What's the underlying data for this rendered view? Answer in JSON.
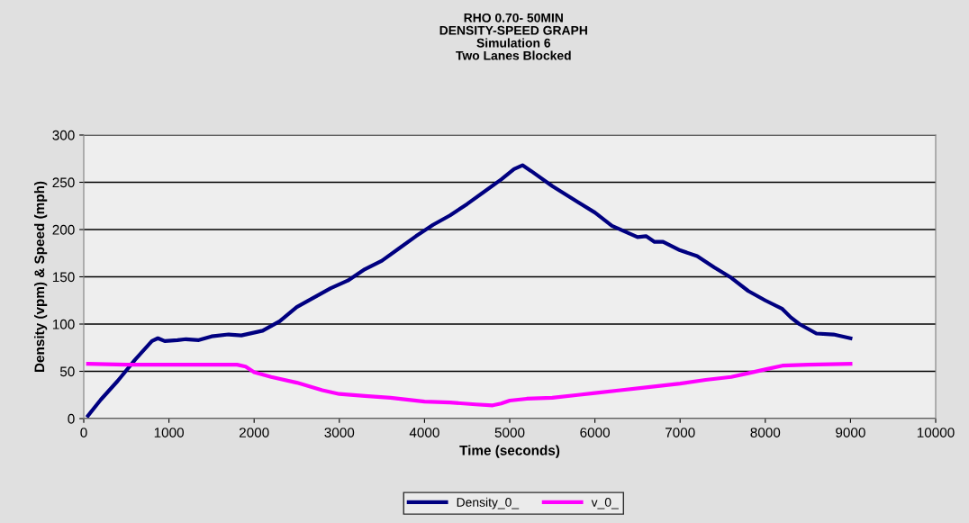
{
  "chart_data": {
    "type": "line",
    "title": "RHO 0.70- 50MIN\nDENSITY-SPEED GRAPH\nSimulation 6\nTwo Lanes Blocked",
    "xlabel": "Time (seconds)",
    "ylabel": "Density (vpm) & Speed (mph)",
    "xlim": [
      0,
      10000
    ],
    "xticks": [
      0,
      1000,
      2000,
      3000,
      4000,
      5000,
      6000,
      7000,
      8000,
      9000,
      10000
    ],
    "ylim": [
      0,
      300
    ],
    "yticks": [
      0,
      50,
      100,
      150,
      200,
      250,
      300
    ],
    "grid": "y",
    "legend": "bottom",
    "marker": "none",
    "line_style": "solid",
    "series": [
      {
        "name": "Density_0_",
        "color": "#000080",
        "x": [
          50,
          200,
          400,
          600,
          800,
          870,
          950,
          1100,
          1200,
          1350,
          1500,
          1700,
          1850,
          2100,
          2300,
          2500,
          2700,
          2900,
          3100,
          3300,
          3500,
          3700,
          3900,
          4100,
          4300,
          4500,
          4700,
          4900,
          5050,
          5150,
          5250,
          5500,
          5800,
          6000,
          6200,
          6350,
          6500,
          6600,
          6700,
          6800,
          7000,
          7200,
          7400,
          7600,
          7800,
          8000,
          8200,
          8300,
          8400,
          8600,
          8800,
          9000
        ],
        "values": [
          3,
          20,
          40,
          62,
          82,
          85,
          82,
          83,
          84,
          83,
          87,
          89,
          88,
          93,
          103,
          118,
          128,
          138,
          146,
          158,
          167,
          180,
          193,
          205,
          215,
          227,
          240,
          253,
          264,
          268,
          262,
          246,
          229,
          218,
          204,
          198,
          192,
          193,
          187,
          187,
          178,
          172,
          160,
          149,
          135,
          125,
          116,
          107,
          100,
          90,
          89,
          85
        ]
      },
      {
        "name": "v_0_",
        "color": "#ff00ff",
        "x": [
          50,
          500,
          1000,
          1500,
          1800,
          1900,
          2000,
          2200,
          2500,
          2800,
          3000,
          3300,
          3600,
          4000,
          4300,
          4600,
          4800,
          4900,
          5000,
          5200,
          5500,
          5800,
          6000,
          6300,
          6600,
          7000,
          7300,
          7600,
          7800,
          8000,
          8200,
          8500,
          9000
        ],
        "values": [
          58,
          57,
          57,
          57,
          57,
          55,
          49,
          44,
          38,
          30,
          26,
          24,
          22,
          18,
          17,
          15,
          14,
          16,
          19,
          21,
          22,
          25,
          27,
          30,
          33,
          37,
          41,
          44,
          48,
          52,
          56,
          57,
          58
        ]
      }
    ]
  }
}
